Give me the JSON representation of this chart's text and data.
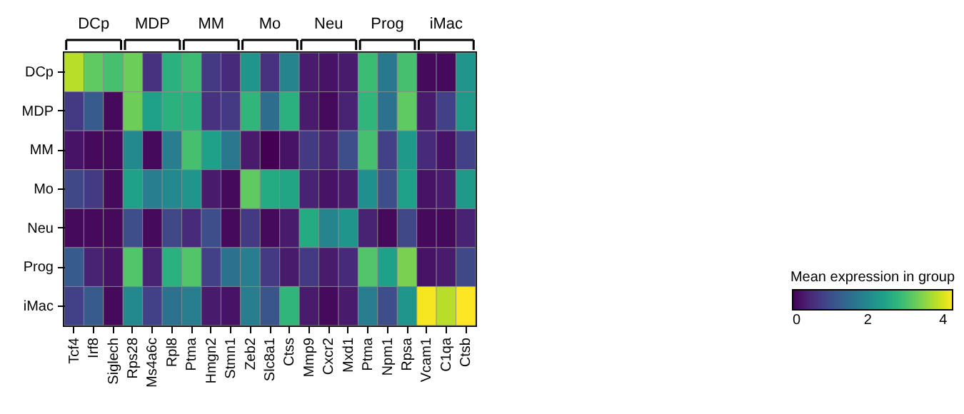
{
  "chart_data": {
    "type": "heatmap",
    "categories": [
      "Tcf4",
      "Irf8",
      "Siglech",
      "Rps28",
      "Ms4a6c",
      "Rpl8",
      "Ptma",
      "Hmgn2",
      "Stmn1",
      "Zeb2",
      "Slc8a1",
      "Ctss",
      "Mmp9",
      "Cxcr2",
      "Mxd1",
      "Ptma",
      "Npm1",
      "Rpsa",
      "Vcam1",
      "C1qa",
      "Ctsb"
    ],
    "y_categories": [
      "DCp",
      "MDP",
      "MM",
      "Mo",
      "Neu",
      "Prog",
      "iMac"
    ],
    "cells": [
      [
        3.8,
        3.2,
        3.0,
        3.3,
        0.6,
        2.7,
        2.9,
        0.7,
        0.5,
        2.2,
        0.6,
        1.9,
        0.3,
        0.2,
        0.3,
        2.9,
        1.7,
        3.0,
        0.1,
        0.1,
        2.2
      ],
      [
        0.7,
        1.2,
        0.1,
        3.3,
        2.4,
        2.7,
        2.7,
        0.6,
        0.7,
        2.8,
        1.5,
        2.7,
        0.3,
        0.1,
        0.4,
        2.8,
        1.6,
        3.2,
        0.3,
        0.8,
        2.3
      ],
      [
        0.2,
        0.1,
        0.1,
        2.0,
        0.1,
        1.8,
        3.0,
        2.4,
        1.7,
        0.3,
        0.0,
        0.2,
        0.7,
        0.4,
        1.0,
        3.0,
        0.8,
        2.3,
        0.5,
        0.2,
        0.8
      ],
      [
        0.9,
        0.7,
        0.1,
        2.4,
        1.8,
        2.0,
        2.2,
        0.3,
        0.1,
        3.2,
        2.6,
        2.5,
        0.4,
        0.2,
        0.3,
        2.1,
        1.0,
        2.4,
        0.2,
        0.3,
        2.3
      ],
      [
        0.1,
        0.1,
        0.1,
        1.0,
        0.1,
        0.9,
        0.5,
        1.0,
        0.1,
        0.7,
        0.1,
        0.3,
        2.6,
        1.9,
        2.2,
        0.4,
        0.1,
        0.9,
        0.1,
        0.1,
        0.4
      ],
      [
        1.2,
        0.4,
        0.2,
        3.1,
        0.4,
        2.7,
        3.1,
        0.8,
        1.6,
        1.8,
        0.7,
        0.3,
        0.7,
        0.3,
        0.5,
        3.1,
        2.4,
        3.4,
        0.2,
        0.3,
        0.9
      ],
      [
        0.8,
        1.2,
        0.1,
        2.0,
        0.8,
        1.6,
        1.8,
        0.3,
        0.2,
        1.8,
        1.1,
        2.8,
        0.3,
        0.1,
        0.3,
        1.8,
        1.0,
        2.2,
        4.2,
        3.8,
        4.25
      ]
    ],
    "clim": [
      0,
      4.25
    ],
    "cticks": [
      0,
      2,
      4
    ],
    "legend_title": "Mean expression in group",
    "annotations": [
      "DCp",
      "MDP",
      "MM",
      "Mo",
      "Neu",
      "Prog",
      "iMac"
    ]
  }
}
